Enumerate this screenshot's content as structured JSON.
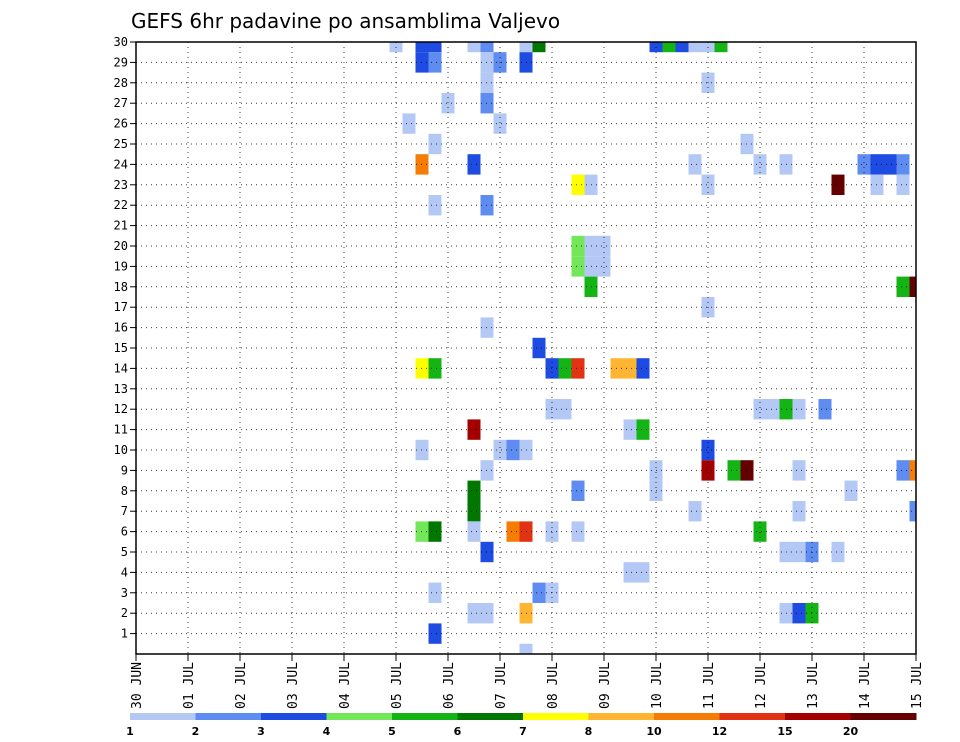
{
  "chart_data": {
    "type": "heatmap",
    "title": "GEFS 6hr padavine po ansamblima Valjevo",
    "x_tick_labels": [
      "30 JUN",
      "01 JUL",
      "02 JUL",
      "03 JUL",
      "04 JUL",
      "05 JUL",
      "06 JUL",
      "07 JUL",
      "08 JUL",
      "09 JUL",
      "10 JUL",
      "11 JUL",
      "12 JUL",
      "13 JUL",
      "14 JUL",
      "15 JUL"
    ],
    "y_tick_labels": [
      "1",
      "2",
      "3",
      "4",
      "5",
      "6",
      "7",
      "8",
      "9",
      "10",
      "11",
      "12",
      "13",
      "14",
      "15",
      "16",
      "17",
      "18",
      "19",
      "20",
      "21",
      "22",
      "23",
      "24",
      "25",
      "26",
      "27",
      "28",
      "29",
      "30"
    ],
    "time_range_days": [
      0,
      15
    ],
    "members_range": [
      0,
      30
    ],
    "grid": true,
    "legend": {
      "placement": "bottom",
      "labels": [
        "1",
        "2",
        "3",
        "4",
        "5",
        "6",
        "7",
        "8",
        "10",
        "12",
        "15",
        "20"
      ],
      "colors": [
        "#b4c8f5",
        "#5f8cf0",
        "#1e4be1",
        "#73e65a",
        "#14b414",
        "#007800",
        "#ffff00",
        "#ffb432",
        "#f57d05",
        "#e13214",
        "#a50000",
        "#640000"
      ]
    },
    "cells": [
      {
        "t": 5.0,
        "m": 30,
        "v": 1
      },
      {
        "t": 5.5,
        "m": 30,
        "v": 3
      },
      {
        "t": 5.75,
        "m": 30,
        "v": 3
      },
      {
        "t": 6.5,
        "m": 30,
        "v": 1
      },
      {
        "t": 6.75,
        "m": 30,
        "v": 2
      },
      {
        "t": 7.5,
        "m": 30,
        "v": 1
      },
      {
        "t": 7.75,
        "m": 30,
        "v": 6
      },
      {
        "t": 10.0,
        "m": 30,
        "v": 3
      },
      {
        "t": 10.25,
        "m": 30,
        "v": 5
      },
      {
        "t": 10.5,
        "m": 30,
        "v": 3
      },
      {
        "t": 10.75,
        "m": 30,
        "v": 1
      },
      {
        "t": 11.0,
        "m": 30,
        "v": 1
      },
      {
        "t": 11.25,
        "m": 30,
        "v": 5
      },
      {
        "t": 5.5,
        "m": 29,
        "v": 3
      },
      {
        "t": 5.75,
        "m": 29,
        "v": 2
      },
      {
        "t": 6.75,
        "m": 29,
        "v": 1
      },
      {
        "t": 7.0,
        "m": 29,
        "v": 2
      },
      {
        "t": 7.5,
        "m": 29,
        "v": 3
      },
      {
        "t": 6.75,
        "m": 28,
        "v": 1
      },
      {
        "t": 11.0,
        "m": 28,
        "v": 1
      },
      {
        "t": 6.0,
        "m": 27,
        "v": 1
      },
      {
        "t": 6.75,
        "m": 27,
        "v": 2
      },
      {
        "t": 5.25,
        "m": 26,
        "v": 1
      },
      {
        "t": 7.0,
        "m": 26,
        "v": 1
      },
      {
        "t": 5.75,
        "m": 25,
        "v": 1
      },
      {
        "t": 11.75,
        "m": 25,
        "v": 1
      },
      {
        "t": 5.5,
        "m": 24,
        "v": 10
      },
      {
        "t": 6.5,
        "m": 24,
        "v": 3
      },
      {
        "t": 10.75,
        "m": 24,
        "v": 1
      },
      {
        "t": 12.0,
        "m": 24,
        "v": 1
      },
      {
        "t": 12.5,
        "m": 24,
        "v": 1
      },
      {
        "t": 14.0,
        "m": 24,
        "v": 2
      },
      {
        "t": 14.25,
        "m": 24,
        "v": 3
      },
      {
        "t": 14.5,
        "m": 24,
        "v": 3
      },
      {
        "t": 14.75,
        "m": 24,
        "v": 2
      },
      {
        "t": 8.5,
        "m": 23,
        "v": 7
      },
      {
        "t": 8.75,
        "m": 23,
        "v": 1
      },
      {
        "t": 11.0,
        "m": 23,
        "v": 1
      },
      {
        "t": 13.5,
        "m": 23,
        "v": 20
      },
      {
        "t": 14.25,
        "m": 23,
        "v": 1
      },
      {
        "t": 14.75,
        "m": 23,
        "v": 1
      },
      {
        "t": 5.75,
        "m": 22,
        "v": 1
      },
      {
        "t": 6.75,
        "m": 22,
        "v": 2
      },
      {
        "t": 8.5,
        "m": 20,
        "v": 4
      },
      {
        "t": 8.75,
        "m": 20,
        "v": 1
      },
      {
        "t": 9.0,
        "m": 20,
        "v": 1
      },
      {
        "t": 8.5,
        "m": 19,
        "v": 4
      },
      {
        "t": 8.75,
        "m": 19,
        "v": 1
      },
      {
        "t": 9.0,
        "m": 19,
        "v": 1
      },
      {
        "t": 8.75,
        "m": 18,
        "v": 5
      },
      {
        "t": 14.75,
        "m": 18,
        "v": 5
      },
      {
        "t": 15.0,
        "m": 18,
        "v": 20
      },
      {
        "t": 11.0,
        "m": 17,
        "v": 1
      },
      {
        "t": 6.75,
        "m": 16,
        "v": 1
      },
      {
        "t": 7.75,
        "m": 15,
        "v": 3
      },
      {
        "t": 5.5,
        "m": 14,
        "v": 7
      },
      {
        "t": 5.75,
        "m": 14,
        "v": 5
      },
      {
        "t": 8.0,
        "m": 14,
        "v": 3
      },
      {
        "t": 8.25,
        "m": 14,
        "v": 5
      },
      {
        "t": 8.5,
        "m": 14,
        "v": 12
      },
      {
        "t": 9.25,
        "m": 14,
        "v": 8
      },
      {
        "t": 9.5,
        "m": 14,
        "v": 8
      },
      {
        "t": 9.75,
        "m": 14,
        "v": 3
      },
      {
        "t": 8.0,
        "m": 12,
        "v": 1
      },
      {
        "t": 8.25,
        "m": 12,
        "v": 1
      },
      {
        "t": 12.0,
        "m": 12,
        "v": 1
      },
      {
        "t": 12.25,
        "m": 12,
        "v": 1
      },
      {
        "t": 12.5,
        "m": 12,
        "v": 5
      },
      {
        "t": 12.75,
        "m": 12,
        "v": 1
      },
      {
        "t": 13.25,
        "m": 12,
        "v": 2
      },
      {
        "t": 6.5,
        "m": 11,
        "v": 15
      },
      {
        "t": 9.5,
        "m": 11,
        "v": 1
      },
      {
        "t": 9.75,
        "m": 11,
        "v": 5
      },
      {
        "t": 5.5,
        "m": 10,
        "v": 1
      },
      {
        "t": 7.0,
        "m": 10,
        "v": 1
      },
      {
        "t": 7.25,
        "m": 10,
        "v": 2
      },
      {
        "t": 7.5,
        "m": 10,
        "v": 1
      },
      {
        "t": 11.0,
        "m": 10,
        "v": 3
      },
      {
        "t": 6.75,
        "m": 9,
        "v": 1
      },
      {
        "t": 10.0,
        "m": 9,
        "v": 1
      },
      {
        "t": 11.0,
        "m": 9,
        "v": 15
      },
      {
        "t": 11.5,
        "m": 9,
        "v": 5
      },
      {
        "t": 11.75,
        "m": 9,
        "v": 20
      },
      {
        "t": 12.75,
        "m": 9,
        "v": 1
      },
      {
        "t": 14.75,
        "m": 9,
        "v": 2
      },
      {
        "t": 15.0,
        "m": 9,
        "v": 10
      },
      {
        "t": 6.5,
        "m": 8,
        "v": 6
      },
      {
        "t": 8.5,
        "m": 8,
        "v": 2
      },
      {
        "t": 10.0,
        "m": 8,
        "v": 1
      },
      {
        "t": 13.75,
        "m": 8,
        "v": 1
      },
      {
        "t": 6.5,
        "m": 7,
        "v": 6
      },
      {
        "t": 10.75,
        "m": 7,
        "v": 1
      },
      {
        "t": 12.75,
        "m": 7,
        "v": 1
      },
      {
        "t": 15.0,
        "m": 7,
        "v": 2
      },
      {
        "t": 5.5,
        "m": 6,
        "v": 4
      },
      {
        "t": 5.75,
        "m": 6,
        "v": 6
      },
      {
        "t": 6.5,
        "m": 6,
        "v": 1
      },
      {
        "t": 7.25,
        "m": 6,
        "v": 10
      },
      {
        "t": 7.5,
        "m": 6,
        "v": 12
      },
      {
        "t": 8.0,
        "m": 6,
        "v": 1
      },
      {
        "t": 8.5,
        "m": 6,
        "v": 1
      },
      {
        "t": 12.0,
        "m": 6,
        "v": 5
      },
      {
        "t": 6.75,
        "m": 5,
        "v": 3
      },
      {
        "t": 12.5,
        "m": 5,
        "v": 1
      },
      {
        "t": 12.75,
        "m": 5,
        "v": 1
      },
      {
        "t": 13.0,
        "m": 5,
        "v": 2
      },
      {
        "t": 13.5,
        "m": 5,
        "v": 1
      },
      {
        "t": 9.5,
        "m": 4,
        "v": 1
      },
      {
        "t": 9.75,
        "m": 4,
        "v": 1
      },
      {
        "t": 5.75,
        "m": 3,
        "v": 1
      },
      {
        "t": 7.75,
        "m": 3,
        "v": 2
      },
      {
        "t": 8.0,
        "m": 3,
        "v": 1
      },
      {
        "t": 6.5,
        "m": 2,
        "v": 1
      },
      {
        "t": 6.75,
        "m": 2,
        "v": 1
      },
      {
        "t": 7.5,
        "m": 2,
        "v": 8
      },
      {
        "t": 12.5,
        "m": 2,
        "v": 1
      },
      {
        "t": 12.75,
        "m": 2,
        "v": 3
      },
      {
        "t": 13.0,
        "m": 2,
        "v": 5
      },
      {
        "t": 5.75,
        "m": 1,
        "v": 3
      },
      {
        "t": 7.5,
        "m": 0,
        "v": 1
      }
    ]
  }
}
